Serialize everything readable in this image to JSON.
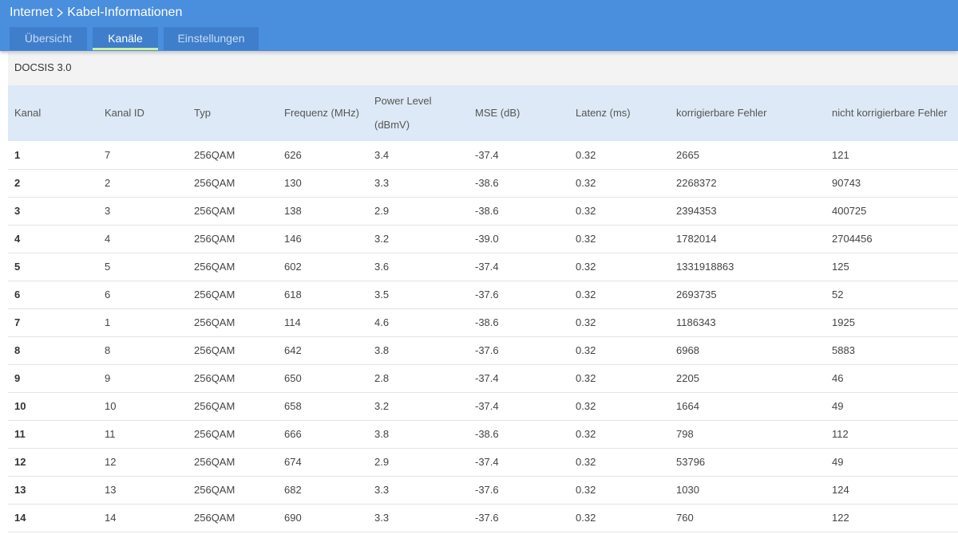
{
  "breadcrumb": {
    "parent": "Internet",
    "current": "Kabel-Informationen"
  },
  "tabs": [
    {
      "label": "Übersicht",
      "active": false
    },
    {
      "label": "Kanäle",
      "active": true
    },
    {
      "label": "Einstellungen",
      "active": false
    }
  ],
  "colors": {
    "header_bg": "#4a8ede",
    "tab_bg": "#3f7ecb",
    "active_tab_underline": "#c8f0a0",
    "table_header_bg": "#dde9f6"
  },
  "section": {
    "title": "DOCSIS 3.0"
  },
  "table": {
    "headers": {
      "kanal": "Kanal",
      "kanal_id": "Kanal ID",
      "typ": "Typ",
      "frequenz": "Frequenz (MHz)",
      "power_line1": "Power Level",
      "power_line2": "(dBmV)",
      "mse": "MSE (dB)",
      "latenz": "Latenz (ms)",
      "korr": "korrigierbare Fehler",
      "nicht_korr": "nicht korrigierbare Fehler"
    },
    "rows": [
      [
        "1",
        "7",
        "256QAM",
        "626",
        "3.4",
        "-37.4",
        "0.32",
        "2665",
        "121"
      ],
      [
        "2",
        "2",
        "256QAM",
        "130",
        "3.3",
        "-38.6",
        "0.32",
        "2268372",
        "90743"
      ],
      [
        "3",
        "3",
        "256QAM",
        "138",
        "2.9",
        "-38.6",
        "0.32",
        "2394353",
        "400725"
      ],
      [
        "4",
        "4",
        "256QAM",
        "146",
        "3.2",
        "-39.0",
        "0.32",
        "1782014",
        "2704456"
      ],
      [
        "5",
        "5",
        "256QAM",
        "602",
        "3.6",
        "-37.4",
        "0.32",
        "1331918863",
        "125"
      ],
      [
        "6",
        "6",
        "256QAM",
        "618",
        "3.5",
        "-37.6",
        "0.32",
        "2693735",
        "52"
      ],
      [
        "7",
        "1",
        "256QAM",
        "114",
        "4.6",
        "-38.6",
        "0.32",
        "1186343",
        "1925"
      ],
      [
        "8",
        "8",
        "256QAM",
        "642",
        "3.8",
        "-37.6",
        "0.32",
        "6968",
        "5883"
      ],
      [
        "9",
        "9",
        "256QAM",
        "650",
        "2.8",
        "-37.4",
        "0.32",
        "2205",
        "46"
      ],
      [
        "10",
        "10",
        "256QAM",
        "658",
        "3.2",
        "-37.4",
        "0.32",
        "1664",
        "49"
      ],
      [
        "11",
        "11",
        "256QAM",
        "666",
        "3.8",
        "-38.6",
        "0.32",
        "798",
        "112"
      ],
      [
        "12",
        "12",
        "256QAM",
        "674",
        "2.9",
        "-37.4",
        "0.32",
        "53796",
        "49"
      ],
      [
        "13",
        "13",
        "256QAM",
        "682",
        "3.3",
        "-37.6",
        "0.32",
        "1030",
        "124"
      ],
      [
        "14",
        "14",
        "256QAM",
        "690",
        "3.3",
        "-37.6",
        "0.32",
        "760",
        "122"
      ]
    ]
  }
}
